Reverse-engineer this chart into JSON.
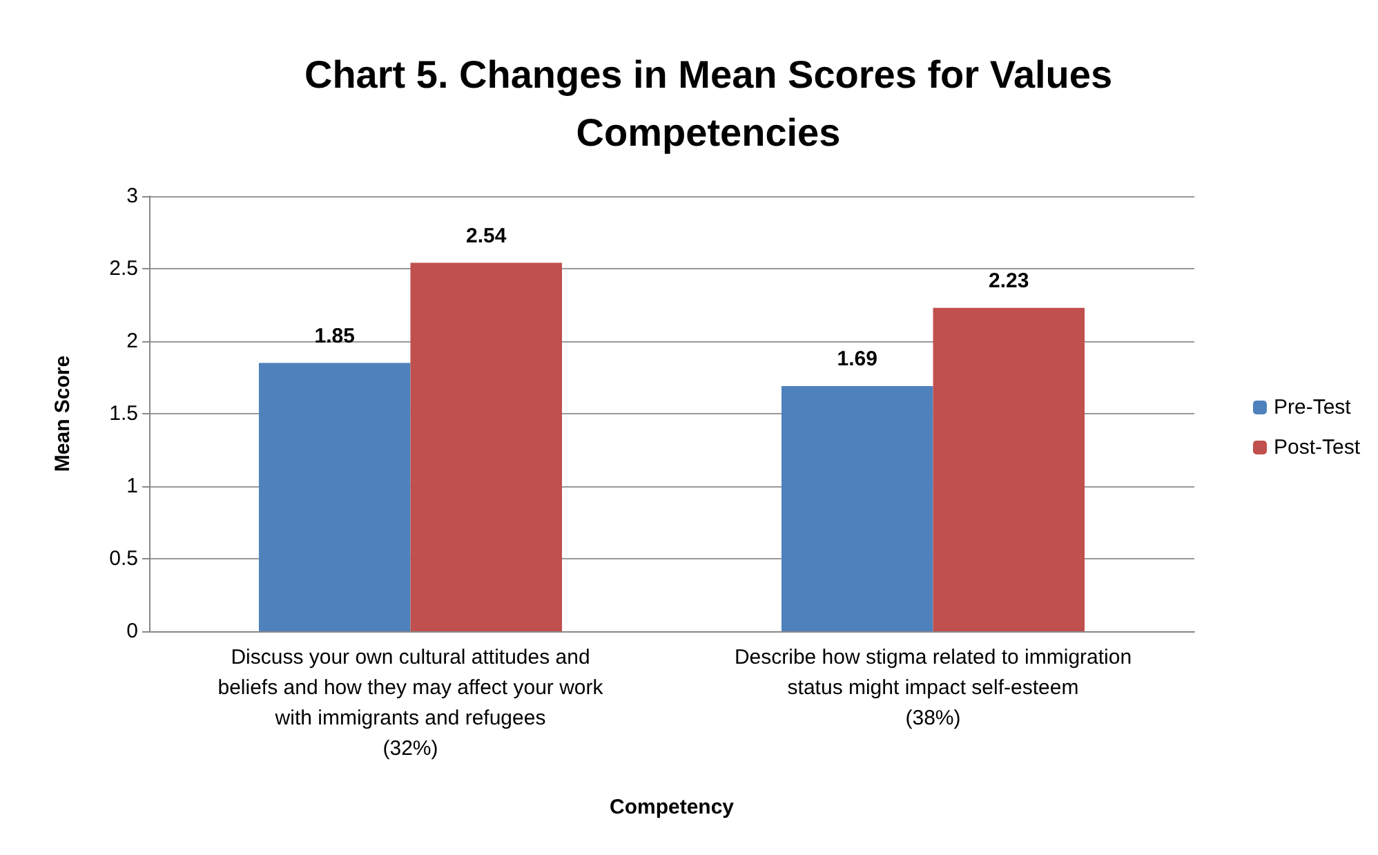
{
  "chart_data": {
    "type": "bar",
    "title": "Chart 5. Changes in Mean Scores for Values\nCompetencies",
    "xlabel": "Competency",
    "ylabel": "Mean Score",
    "categories": [
      "Discuss your own cultural attitudes and\nbeliefs and how they may affect your work\nwith immigrants and refugees\n(32%)",
      "Describe how stigma related to immigration\nstatus might impact self-esteem\n(38%)"
    ],
    "series": [
      {
        "name": "Pre-Test",
        "color": "#4f81bd",
        "values": [
          1.85,
          1.69
        ]
      },
      {
        "name": "Post-Test",
        "color": "#c0504d",
        "values": [
          2.54,
          2.23
        ]
      }
    ],
    "ylim": [
      0,
      3
    ],
    "yticks": [
      0,
      0.5,
      1,
      1.5,
      2,
      2.5,
      3
    ],
    "grid": "y",
    "legend": "right",
    "data_labels": true
  }
}
